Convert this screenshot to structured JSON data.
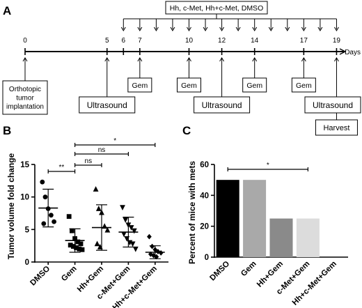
{
  "panels": {
    "a": "A",
    "b": "B",
    "c": "C"
  },
  "timeline": {
    "treatment_label": "Hh, c-Met, Hh+c-Met, DMSO",
    "unit_label": "Days",
    "day_ticks": [
      0,
      5,
      6,
      7,
      10,
      12,
      14,
      17,
      19
    ],
    "treatment_days": [
      6,
      7,
      8,
      9,
      10,
      11,
      12,
      13,
      14,
      15,
      16,
      17,
      18,
      19
    ],
    "events": [
      {
        "label": "Orthotopic\ntumor\nimplantation",
        "day": 0,
        "side": "below",
        "size": "small"
      },
      {
        "label": "Ultrasound",
        "day": 5,
        "side": "below",
        "size": "large"
      },
      {
        "label": "Gem",
        "day": 7,
        "side": "below",
        "size": "small"
      },
      {
        "label": "Gem",
        "day": 10,
        "side": "below",
        "size": "small"
      },
      {
        "label": "Ultrasound",
        "day": 12,
        "side": "below",
        "size": "large"
      },
      {
        "label": "Gem",
        "day": 14,
        "side": "below",
        "size": "small"
      },
      {
        "label": "Gem",
        "day": 17,
        "side": "below",
        "size": "small"
      },
      {
        "label": "Ultrasound",
        "day": 19,
        "side": "below",
        "size": "large"
      },
      {
        "label": "Harvest",
        "day": 19,
        "side": "below",
        "size": "small"
      }
    ]
  },
  "chart_data": [
    {
      "type": "scatter",
      "panel": "B",
      "ylabel": "Tumor volume fold change",
      "ylim": [
        0,
        15
      ],
      "yticks": [
        0,
        5,
        10,
        15
      ],
      "categories": [
        "DMSO",
        "Gem",
        "Hh+Gem",
        "c-Met+Gem",
        "Hh+c-Met+Gem"
      ],
      "markers": [
        "circle",
        "square",
        "triangle-up",
        "triangle-down",
        "diamond"
      ],
      "points": [
        [
          12.3,
          10.0,
          8.2,
          7.2,
          6.2,
          5.9
        ],
        [
          7.0,
          4.8,
          3.6,
          3.1,
          2.8,
          2.6,
          2.4,
          2.2,
          2.0,
          1.9
        ],
        [
          11.2,
          8.2,
          7.6,
          5.5,
          4.9,
          2.8,
          2.3
        ],
        [
          8.4,
          6.5,
          5.7,
          5.3,
          4.8,
          4.3,
          3.6,
          3.0,
          2.8,
          2.0
        ],
        [
          3.9,
          2.4,
          1.9,
          1.6,
          1.4,
          1.2,
          1.0,
          0.8
        ]
      ],
      "mean": [
        8.3,
        3.3,
        5.3,
        4.6,
        1.5
      ],
      "sd": [
        2.9,
        1.8,
        3.5,
        2.3,
        1.0
      ],
      "significance": [
        {
          "from": "DMSO",
          "to": "Gem",
          "label": "**"
        },
        {
          "from": "Gem",
          "to": "Hh+Gem",
          "label": "ns"
        },
        {
          "from": "Gem",
          "to": "c-Met+Gem",
          "label": "ns"
        },
        {
          "from": "Gem",
          "to": "Hh+c-Met+Gem",
          "label": "*"
        }
      ]
    },
    {
      "type": "bar",
      "panel": "C",
      "ylabel": "Percent of mice with mets",
      "ylim": [
        0,
        60
      ],
      "yticks": [
        0,
        20,
        40,
        60
      ],
      "categories": [
        "DMSO",
        "Gem",
        "Hh+Gem",
        "c-Met+Gem",
        "Hh+c-Met+Gem"
      ],
      "values": [
        50,
        50,
        25,
        25,
        0
      ],
      "colors": [
        "#000000",
        "#a9a9a9",
        "#8a8a8a",
        "#dcdcdc",
        "#ffffff"
      ],
      "significance": [
        {
          "from": "DMSO",
          "to": "c-Met+Gem",
          "label": "*"
        }
      ]
    }
  ]
}
